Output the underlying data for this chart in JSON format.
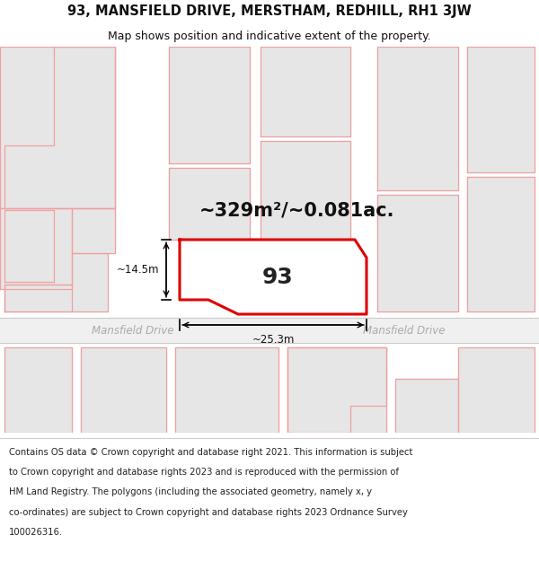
{
  "title_line1": "93, MANSFIELD DRIVE, MERSTHAM, REDHILL, RH1 3JW",
  "title_line2": "Map shows position and indicative extent of the property.",
  "area_text": "~329m²/~0.081ac.",
  "house_number": "93",
  "width_label": "~25.3m",
  "height_label": "~14.5m",
  "road_label_left": "Mansfield Drive",
  "road_label_right": "Mansfield Drive",
  "bg_color": "#ffffff",
  "map_bg": "#f7f7f7",
  "plot_fill": "#ffffff",
  "plot_outline": "#dd0000",
  "neighbor_fill": "#e6e6e6",
  "neighbor_outline": "#f0a0a0",
  "road_fill": "#f0f0f0",
  "road_line": "#cccccc",
  "title_fontsize": 10.5,
  "subtitle_fontsize": 9,
  "area_fontsize": 15,
  "number_fontsize": 18,
  "label_fontsize": 8.5,
  "road_label_fontsize": 8.5,
  "footer_fontsize": 7.2,
  "footer_lines": [
    "Contains OS data © Crown copyright and database right 2021. This information is subject",
    "to Crown copyright and database rights 2023 and is reproduced with the permission of",
    "HM Land Registry. The polygons (including the associated geometry, namely x, y",
    "co-ordinates) are subject to Crown copyright and database rights 2023 Ordnance Survey",
    "100026316."
  ]
}
